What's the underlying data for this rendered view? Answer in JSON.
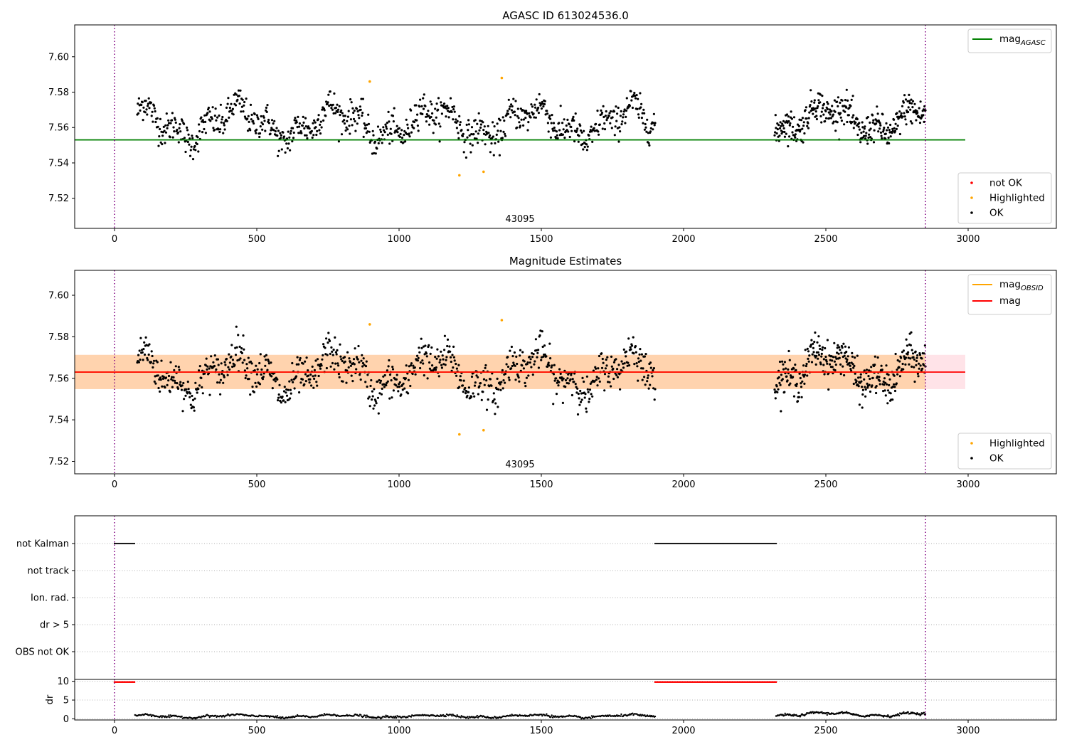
{
  "chart_data": [
    {
      "type": "scatter",
      "title": "AGASC ID 613024536.0",
      "xlim": [
        -140,
        3310
      ],
      "ylim": [
        7.503,
        7.618
      ],
      "xticks": [
        0,
        500,
        1000,
        1500,
        2000,
        2500,
        3000
      ],
      "yticks": [
        7.52,
        7.54,
        7.56,
        7.58,
        7.6
      ],
      "ytick_labels": [
        "7.52",
        "7.54",
        "7.56",
        "7.58",
        "7.60"
      ],
      "vlines": [
        0,
        2850
      ],
      "obsid_label": {
        "text": "43095",
        "x": 1425
      },
      "lines": [
        {
          "name": "magAGASC",
          "label_main": "mag",
          "label_sub": "AGASC",
          "y": 7.553,
          "x": [
            -140,
            2990
          ],
          "color": "#008000"
        }
      ],
      "legend_lines_position": "upper right",
      "legend_points": [
        {
          "name": "not OK",
          "color": "#ff0000"
        },
        {
          "name": "Highlighted",
          "color": "#ffa500"
        },
        {
          "name": "OK",
          "color": "#000000"
        }
      ],
      "legend_points_position": "lower right",
      "series": [
        {
          "name": "OK",
          "color": "#000000",
          "generated": true,
          "segments": [
            {
              "x": [
                80,
                1900
              ],
              "mean": 7.5625,
              "amp": 0.0075,
              "noise": 0.008,
              "n": 900
            },
            {
              "x": [
                2320,
                2850
              ],
              "mean": 7.5645,
              "amp": 0.007,
              "noise": 0.008,
              "n": 340
            }
          ]
        },
        {
          "name": "Highlighted",
          "color": "#ffa500",
          "points": [
            [
              897,
              7.586
            ],
            [
              1212,
              7.533
            ],
            [
              1297,
              7.535
            ],
            [
              1361,
              7.588
            ]
          ]
        }
      ]
    },
    {
      "type": "scatter",
      "title": "Magnitude Estimates",
      "xlim": [
        -140,
        3310
      ],
      "ylim": [
        7.514,
        7.612
      ],
      "xticks": [
        0,
        500,
        1000,
        1500,
        2000,
        2500,
        3000
      ],
      "yticks": [
        7.52,
        7.54,
        7.56,
        7.58,
        7.6
      ],
      "ytick_labels": [
        "7.52",
        "7.54",
        "7.56",
        "7.58",
        "7.60"
      ],
      "vlines": [
        0,
        2850
      ],
      "obsid_label": {
        "text": "43095",
        "x": 1425
      },
      "bands": [
        {
          "x": [
            -140,
            2990
          ],
          "y": [
            7.5548,
            7.5713
          ],
          "color": "#ffc0cb",
          "opacity": 0.45
        },
        {
          "x": [
            -140,
            2850
          ],
          "y": [
            7.5548,
            7.5713
          ],
          "color": "#ffa500",
          "opacity": 0.25
        }
      ],
      "lines": [
        {
          "name": "magOBSID",
          "label_main": "mag",
          "label_sub": "OBSID",
          "y": 7.563,
          "x": [
            -140,
            2850
          ],
          "color": "#ffa500"
        },
        {
          "name": "mag",
          "label_main": "mag",
          "label_sub": "",
          "y": 7.563,
          "x": [
            -140,
            2990
          ],
          "color": "#ff0000"
        }
      ],
      "legend_lines_position": "upper right",
      "legend_points": [
        {
          "name": "Highlighted",
          "color": "#ffa500"
        },
        {
          "name": "OK",
          "color": "#000000"
        }
      ],
      "legend_points_position": "lower right",
      "series": [
        {
          "name": "OK",
          "color": "#000000",
          "generated": true,
          "segments": [
            {
              "x": [
                80,
                1900
              ],
              "mean": 7.5625,
              "amp": 0.0075,
              "noise": 0.008,
              "n": 900
            },
            {
              "x": [
                2320,
                2850
              ],
              "mean": 7.5645,
              "amp": 0.007,
              "noise": 0.008,
              "n": 340
            }
          ]
        },
        {
          "name": "Highlighted",
          "color": "#ffa500",
          "points": [
            [
              897,
              7.586
            ],
            [
              1212,
              7.533
            ],
            [
              1297,
              7.535
            ],
            [
              1361,
              7.588
            ]
          ]
        }
      ]
    },
    {
      "type": "scatter",
      "title": "",
      "xlim": [
        -140,
        3310
      ],
      "category_labels": [
        "not Kalman",
        "not track",
        "Ion. rad.",
        "dr > 5",
        "OBS not OK"
      ],
      "flags": [
        {
          "category": "not Kalman",
          "ranges": [
            [
              0,
              72
            ],
            [
              1900,
              2325
            ]
          ],
          "color": "#000000"
        }
      ],
      "vlines": [
        0,
        2850
      ]
    },
    {
      "type": "scatter",
      "title": "",
      "xlim": [
        -140,
        3310
      ],
      "ylim": [
        -0.3,
        10.5
      ],
      "ylabel": "dr",
      "xticks": [
        0,
        500,
        1000,
        1500,
        2000,
        2500,
        3000
      ],
      "yticks": [
        0,
        5,
        10
      ],
      "vlines": [
        0,
        2850
      ],
      "series": [
        {
          "name": "dr > 5",
          "color": "#ff0000",
          "value": 9.8,
          "ranges": [
            [
              0,
              72
            ],
            [
              1900,
              2325
            ]
          ]
        },
        {
          "name": "dr",
          "color": "#000000",
          "generated": true,
          "segments": [
            {
              "x": [
                72,
                1900
              ],
              "mean": 0.7,
              "amp": 0.3,
              "noise": 0.25,
              "n": 600
            },
            {
              "x": [
                2325,
                2850
              ],
              "mean": 1.2,
              "amp": 0.4,
              "noise": 0.25,
              "n": 200
            }
          ]
        }
      ]
    }
  ]
}
